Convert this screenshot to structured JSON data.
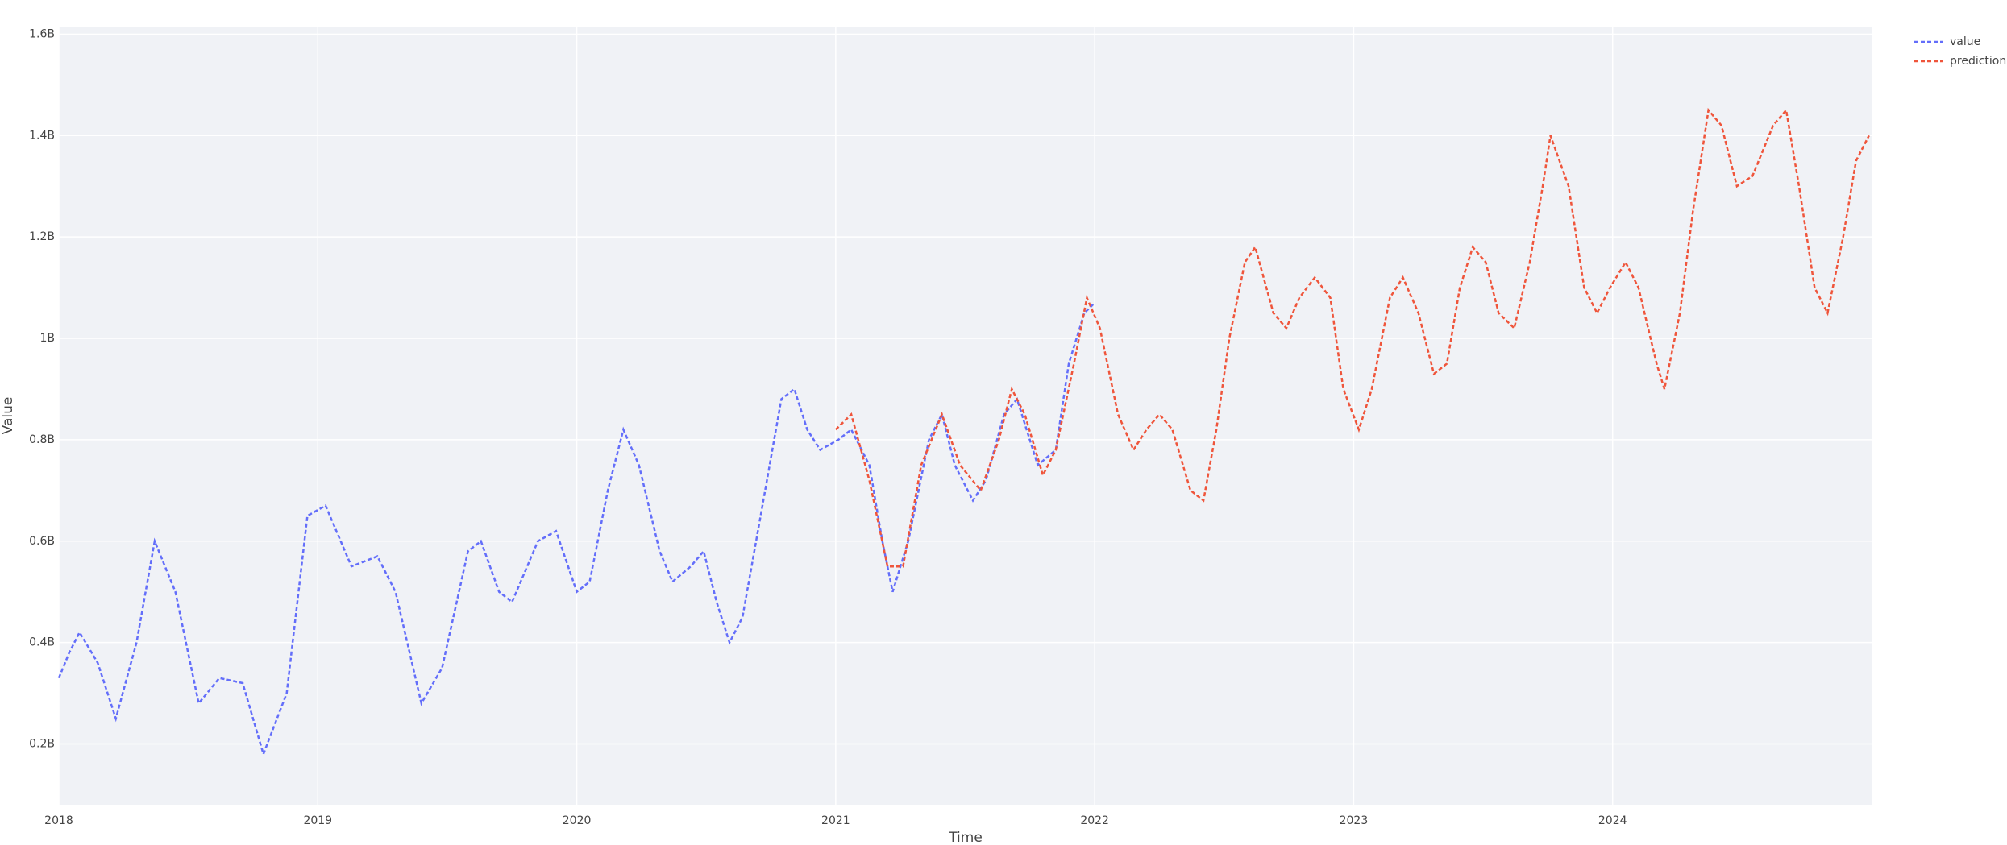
{
  "chart_data": {
    "type": "line",
    "x_label": "Time",
    "y_label": "Value",
    "xlim": [
      2018,
      2025
    ],
    "xticks": [
      2018,
      2019,
      2020,
      2021,
      2022,
      2023,
      2024
    ],
    "ylim": [
      0.08,
      1.615
    ],
    "yticks": [
      {
        "value": 0.2,
        "label": "0.2B"
      },
      {
        "value": 0.4,
        "label": "0.4B"
      },
      {
        "value": 0.6,
        "label": "0.6B"
      },
      {
        "value": 0.8,
        "label": "0.8B"
      },
      {
        "value": 1.0,
        "label": "1B"
      },
      {
        "value": 1.2,
        "label": "1.2B"
      },
      {
        "value": 1.4,
        "label": "1.4B"
      },
      {
        "value": 1.6,
        "label": "1.6B"
      }
    ],
    "grid": true,
    "legend": "top-right",
    "series": [
      {
        "name": "value",
        "color": "#636efa",
        "x": [
          2018.0,
          2018.04,
          2018.08,
          2018.15,
          2018.22,
          2018.3,
          2018.37,
          2018.45,
          2018.54,
          2018.62,
          2018.71,
          2018.79,
          2018.88,
          2018.96,
          2019.03,
          2019.13,
          2019.23,
          2019.3,
          2019.4,
          2019.48,
          2019.58,
          2019.63,
          2019.7,
          2019.75,
          2019.85,
          2019.92,
          2020.0,
          2020.05,
          2020.12,
          2020.18,
          2020.24,
          2020.32,
          2020.37,
          2020.44,
          2020.49,
          2020.54,
          2020.59,
          2020.64,
          2020.71,
          2020.79,
          2020.84,
          2020.89,
          2020.94,
          2021.01,
          2021.06,
          2021.13,
          2021.18,
          2021.22,
          2021.28,
          2021.36,
          2021.41,
          2021.46,
          2021.53,
          2021.58,
          2021.65,
          2021.7,
          2021.78,
          2021.85,
          2021.9,
          2021.96,
          2022.0
        ],
        "values": [
          0.33,
          0.38,
          0.42,
          0.36,
          0.25,
          0.4,
          0.6,
          0.5,
          0.28,
          0.33,
          0.32,
          0.18,
          0.3,
          0.65,
          0.67,
          0.55,
          0.57,
          0.5,
          0.28,
          0.35,
          0.58,
          0.6,
          0.5,
          0.48,
          0.6,
          0.62,
          0.5,
          0.52,
          0.7,
          0.82,
          0.75,
          0.58,
          0.52,
          0.55,
          0.58,
          0.48,
          0.4,
          0.45,
          0.65,
          0.88,
          0.9,
          0.82,
          0.78,
          0.8,
          0.82,
          0.75,
          0.6,
          0.5,
          0.6,
          0.8,
          0.85,
          0.75,
          0.68,
          0.72,
          0.85,
          0.88,
          0.75,
          0.78,
          0.95,
          1.05,
          1.07
        ]
      },
      {
        "name": "prediction",
        "color": "#ef553b",
        "x": [
          2021.0,
          2021.06,
          2021.13,
          2021.2,
          2021.26,
          2021.33,
          2021.41,
          2021.48,
          2021.56,
          2021.63,
          2021.68,
          2021.73,
          2021.8,
          2021.85,
          2021.92,
          2021.97,
          2022.02,
          2022.09,
          2022.15,
          2022.2,
          2022.25,
          2022.3,
          2022.37,
          2022.42,
          2022.47,
          2022.52,
          2022.58,
          2022.62,
          2022.69,
          2022.74,
          2022.79,
          2022.85,
          2022.91,
          2022.96,
          2023.02,
          2023.07,
          2023.14,
          2023.19,
          2023.25,
          2023.31,
          2023.36,
          2023.41,
          2023.46,
          2023.51,
          2023.56,
          2023.62,
          2023.68,
          2023.73,
          2023.76,
          2023.83,
          2023.89,
          2023.94,
          2023.99,
          2024.05,
          2024.1,
          2024.17,
          2024.2,
          2024.26,
          2024.31,
          2024.37,
          2024.42,
          2024.48,
          2024.54,
          2024.62,
          2024.67,
          2024.72,
          2024.78,
          2024.83,
          2024.89,
          2024.94,
          2024.99
        ],
        "values": [
          0.82,
          0.85,
          0.72,
          0.55,
          0.55,
          0.75,
          0.85,
          0.75,
          0.7,
          0.8,
          0.9,
          0.85,
          0.73,
          0.78,
          0.95,
          1.08,
          1.02,
          0.85,
          0.78,
          0.82,
          0.85,
          0.82,
          0.7,
          0.68,
          0.82,
          1.0,
          1.15,
          1.18,
          1.05,
          1.02,
          1.08,
          1.12,
          1.08,
          0.9,
          0.82,
          0.9,
          1.08,
          1.12,
          1.05,
          0.93,
          0.95,
          1.1,
          1.18,
          1.15,
          1.05,
          1.02,
          1.15,
          1.3,
          1.4,
          1.3,
          1.1,
          1.05,
          1.1,
          1.15,
          1.1,
          0.95,
          0.9,
          1.05,
          1.25,
          1.45,
          1.42,
          1.3,
          1.32,
          1.42,
          1.45,
          1.3,
          1.1,
          1.05,
          1.2,
          1.35,
          1.4
        ]
      }
    ]
  }
}
